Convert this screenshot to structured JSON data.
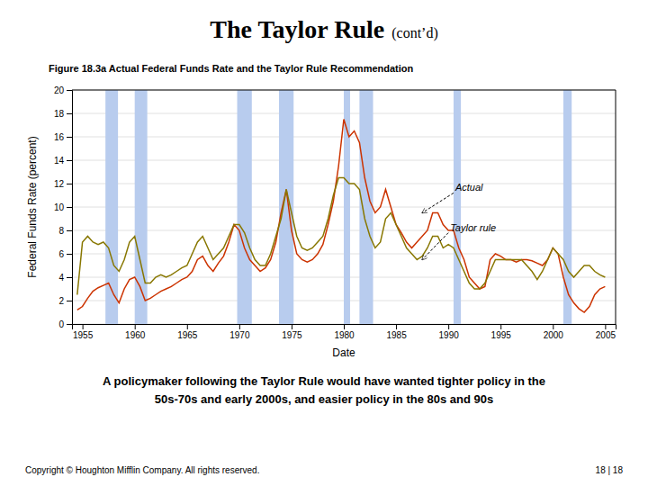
{
  "chart_data": {
    "type": "line",
    "title": "The Taylor Rule",
    "subtitle": "(cont’d)",
    "caption": "Figure 18.3a Actual Federal Funds Rate and the Taylor Rule Recommendation",
    "body_text": [
      "A policymaker following the Taylor Rule would have wanted tighter policy in the",
      "50s-70s and early 2000s, and easier policy in the 80s and 90s"
    ],
    "copyright": "Copyright © Houghton Mifflin Company.  All rights reserved.",
    "page_number": "18 | 18",
    "x_label": "Date",
    "y_label": "Federal Funds Rate (percent)",
    "xlim": [
      1954,
      2006
    ],
    "xticks": [
      1955,
      1960,
      1965,
      1970,
      1975,
      1980,
      1985,
      1990,
      1995,
      2000,
      2005
    ],
    "ylim": [
      0,
      20
    ],
    "yticks": [
      0,
      2,
      4,
      6,
      8,
      10,
      12,
      14,
      16,
      18,
      20
    ],
    "grid": true,
    "recession_bands": {
      "color": "#b8ccee",
      "ranges": [
        [
          1957.2,
          1958.4
        ],
        [
          1960.0,
          1961.2
        ],
        [
          1969.8,
          1971.2
        ],
        [
          1973.8,
          1975.2
        ],
        [
          1980.0,
          1980.6
        ],
        [
          1981.5,
          1982.8
        ],
        [
          1990.5,
          1991.2
        ],
        [
          2001.0,
          2001.8
        ]
      ]
    },
    "x": [
      1954.5,
      1955.0,
      1955.5,
      1956.0,
      1956.5,
      1957.0,
      1957.5,
      1958.0,
      1958.5,
      1959.0,
      1959.5,
      1960.0,
      1960.5,
      1961.0,
      1961.5,
      1962.0,
      1962.5,
      1963.0,
      1963.5,
      1964.0,
      1964.5,
      1965.0,
      1965.5,
      1966.0,
      1966.5,
      1967.0,
      1967.5,
      1968.0,
      1968.5,
      1969.0,
      1969.5,
      1970.0,
      1970.5,
      1971.0,
      1971.5,
      1972.0,
      1972.5,
      1973.0,
      1973.5,
      1974.0,
      1974.5,
      1975.0,
      1975.5,
      1976.0,
      1976.5,
      1977.0,
      1977.5,
      1978.0,
      1978.5,
      1979.0,
      1979.5,
      1980.0,
      1980.5,
      1981.0,
      1981.5,
      1982.0,
      1982.5,
      1983.0,
      1983.5,
      1984.0,
      1984.5,
      1985.0,
      1985.5,
      1986.0,
      1986.5,
      1987.0,
      1987.5,
      1988.0,
      1988.5,
      1989.0,
      1989.5,
      1990.0,
      1990.5,
      1991.0,
      1991.5,
      1992.0,
      1992.5,
      1993.0,
      1993.5,
      1994.0,
      1994.5,
      1995.0,
      1995.5,
      1996.0,
      1996.5,
      1997.0,
      1997.5,
      1998.0,
      1998.5,
      1999.0,
      1999.5,
      2000.0,
      2000.5,
      2001.0,
      2001.5,
      2002.0,
      2002.5,
      2003.0,
      2003.5,
      2004.0,
      2004.5,
      2005.0
    ],
    "series": [
      {
        "color": "#cc3300",
        "values": [
          1.2,
          1.5,
          2.2,
          2.8,
          3.1,
          3.3,
          3.5,
          2.5,
          1.8,
          3.0,
          3.8,
          4.0,
          3.2,
          2.0,
          2.2,
          2.5,
          2.8,
          3.0,
          3.2,
          3.5,
          3.8,
          4.0,
          4.5,
          5.5,
          5.8,
          5.0,
          4.5,
          5.2,
          5.8,
          7.0,
          8.5,
          8.0,
          6.5,
          5.5,
          5.0,
          4.5,
          4.8,
          5.5,
          7.0,
          9.5,
          11.5,
          8.0,
          6.0,
          5.5,
          5.3,
          5.5,
          6.0,
          6.8,
          8.5,
          10.5,
          13.5,
          17.5,
          16.0,
          16.5,
          15.5,
          12.5,
          10.5,
          9.5,
          10.0,
          11.5,
          10.0,
          8.5,
          7.8,
          7.0,
          6.5,
          7.0,
          7.5,
          8.0,
          9.5,
          9.5,
          8.5,
          8.0,
          8.0,
          6.5,
          5.5,
          4.0,
          3.5,
          3.0,
          3.2,
          5.5,
          6.0,
          5.8,
          5.5,
          5.5,
          5.3,
          5.5,
          5.5,
          5.4,
          5.2,
          5.0,
          5.5,
          6.5,
          6.0,
          4.0,
          2.5,
          1.8,
          1.3,
          1.0,
          1.5,
          2.5,
          3.0,
          3.2
        ]
      },
      {
        "color": "#887700",
        "values": [
          2.5,
          7.0,
          7.5,
          7.0,
          6.8,
          7.0,
          6.5,
          5.0,
          4.5,
          5.5,
          7.0,
          7.5,
          5.5,
          3.5,
          3.5,
          4.0,
          4.2,
          4.0,
          4.2,
          4.5,
          4.8,
          5.0,
          6.0,
          7.0,
          7.5,
          6.5,
          5.5,
          6.0,
          6.5,
          7.5,
          8.5,
          8.5,
          7.8,
          6.5,
          5.5,
          5.0,
          5.0,
          6.0,
          7.5,
          9.0,
          11.5,
          9.5,
          7.5,
          6.5,
          6.3,
          6.5,
          7.0,
          7.5,
          9.0,
          11.0,
          12.5,
          12.5,
          12.0,
          12.0,
          11.5,
          9.0,
          7.5,
          6.5,
          7.0,
          9.0,
          9.5,
          8.5,
          7.5,
          6.5,
          6.0,
          5.5,
          5.8,
          6.5,
          7.5,
          7.5,
          6.5,
          6.8,
          6.5,
          5.5,
          4.5,
          3.5,
          3.0,
          3.0,
          3.5,
          4.5,
          5.5,
          5.5,
          5.5,
          5.5,
          5.5,
          5.5,
          5.0,
          4.5,
          3.8,
          4.5,
          5.5,
          6.5,
          6.0,
          5.5,
          4.5,
          4.0,
          4.5,
          5.0,
          5.0,
          4.5,
          4.2,
          4.0
        ]
      }
    ],
    "annotations": [
      {
        "text": "Actual",
        "x": 1987.5,
        "y": 9.5,
        "text_x": 1990.5,
        "text_y": 11.2
      },
      {
        "text": "Taylor rule",
        "x": 1987.5,
        "y": 5.5,
        "text_x": 1990.0,
        "text_y": 7.8
      }
    ]
  }
}
